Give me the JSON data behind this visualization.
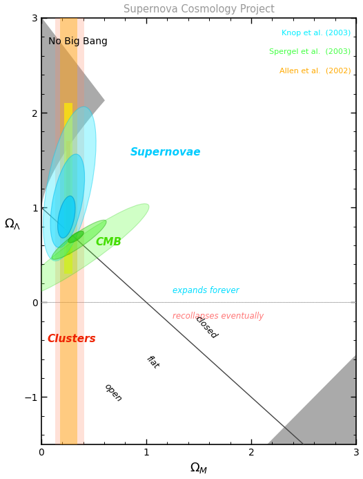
{
  "title": "Supernova Cosmology Project",
  "xlabel": "$\\Omega_M$",
  "ylabel": "$\\Omega_\\Lambda$",
  "xlim": [
    0,
    3
  ],
  "ylim": [
    -1.5,
    3
  ],
  "bg_color": "#ffffff",
  "title_color": "#999999",
  "no_big_bang_label": "No Big Bang",
  "supernovae_label": "Supernovae",
  "cmb_label": "CMB",
  "clusters_label": "Clusters",
  "expands_forever_label": "expands forever",
  "recollapses_label": "recollapses eventually",
  "flat_label": "flat",
  "open_label": "open",
  "closed_label": "closed",
  "legend_knop": "Knop et al. (2003)",
  "legend_spergel": "Spergel et al.  (2003)",
  "legend_allen": "Allen et al.  (2002)",
  "legend_knop_color": "#00eeff",
  "legend_spergel_color": "#44ff44",
  "legend_allen_color": "#ffaa00",
  "supernovae_color": "#00ccff",
  "cmb_color": "#44dd00",
  "clusters_color": "#ee2200",
  "gray_color": "#aaaaaa"
}
